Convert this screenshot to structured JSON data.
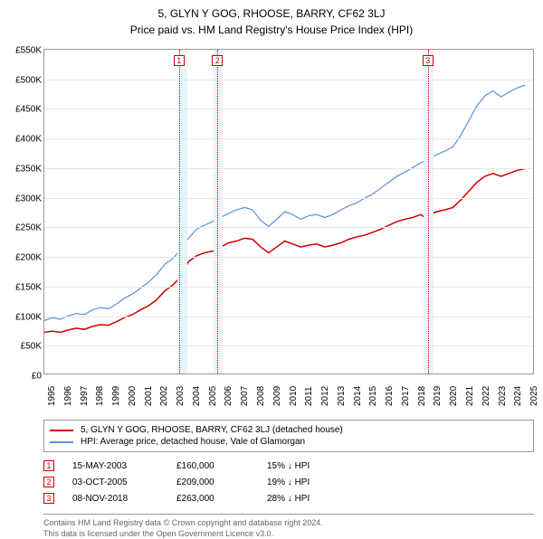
{
  "title": "5, GLYN Y GOG, RHOOSE, BARRY, CF62 3LJ",
  "subtitle": "Price paid vs. HM Land Registry's House Price Index (HPI)",
  "chart": {
    "type": "line",
    "background_color": "#ffffff",
    "grid_color": "#e8e8e8",
    "border_color": "#999999",
    "x_range": [
      1995,
      2025.5
    ],
    "y_range": [
      0,
      550
    ],
    "y_ticks": [
      0,
      50,
      100,
      150,
      200,
      250,
      300,
      350,
      400,
      450,
      500,
      550
    ],
    "y_tick_labels": [
      "£0",
      "£50K",
      "£100K",
      "£150K",
      "£200K",
      "£250K",
      "£300K",
      "£350K",
      "£400K",
      "£450K",
      "£500K",
      "£550K"
    ],
    "x_ticks": [
      1995,
      1996,
      1997,
      1998,
      1999,
      2000,
      2001,
      2002,
      2003,
      2004,
      2005,
      2006,
      2007,
      2008,
      2009,
      2010,
      2011,
      2012,
      2013,
      2014,
      2015,
      2016,
      2017,
      2018,
      2019,
      2020,
      2021,
      2022,
      2023,
      2024,
      2025
    ],
    "highlight_bands": [
      {
        "start": 2003.3,
        "end": 2003.9,
        "color": "#eef3f9"
      },
      {
        "start": 2005.5,
        "end": 2006.1,
        "color": "#eef3f9"
      },
      {
        "start": 2018.6,
        "end": 2019.2,
        "color": "#eef3f9"
      }
    ],
    "marker_lines": [
      {
        "x": 2003.37,
        "color": "#cc0000",
        "label": "1"
      },
      {
        "x": 2005.76,
        "color": "#cc0000",
        "label": "2"
      },
      {
        "x": 2018.85,
        "color": "#cc0000",
        "label": "3"
      }
    ],
    "series": [
      {
        "name": "property",
        "color": "#cc0000",
        "width": 1.5,
        "points": [
          [
            1995,
            70
          ],
          [
            1995.5,
            72
          ],
          [
            1996,
            70
          ],
          [
            1996.5,
            74
          ],
          [
            1997,
            77
          ],
          [
            1997.5,
            75
          ],
          [
            1998,
            80
          ],
          [
            1998.5,
            83
          ],
          [
            1999,
            82
          ],
          [
            1999.5,
            88
          ],
          [
            2000,
            95
          ],
          [
            2000.5,
            100
          ],
          [
            2001,
            108
          ],
          [
            2001.5,
            115
          ],
          [
            2002,
            125
          ],
          [
            2002.5,
            140
          ],
          [
            2003,
            150
          ],
          [
            2003.37,
            160
          ],
          [
            2003.7,
            175
          ],
          [
            2004,
            190
          ],
          [
            2004.5,
            200
          ],
          [
            2005,
            205
          ],
          [
            2005.5,
            208
          ],
          [
            2005.76,
            209
          ],
          [
            2006,
            215
          ],
          [
            2006.5,
            222
          ],
          [
            2007,
            225
          ],
          [
            2007.5,
            230
          ],
          [
            2008,
            228
          ],
          [
            2008.5,
            215
          ],
          [
            2009,
            205
          ],
          [
            2009.5,
            215
          ],
          [
            2010,
            225
          ],
          [
            2010.5,
            220
          ],
          [
            2011,
            215
          ],
          [
            2011.5,
            218
          ],
          [
            2012,
            220
          ],
          [
            2012.5,
            215
          ],
          [
            2013,
            218
          ],
          [
            2013.5,
            222
          ],
          [
            2014,
            228
          ],
          [
            2014.5,
            232
          ],
          [
            2015,
            235
          ],
          [
            2015.5,
            240
          ],
          [
            2016,
            245
          ],
          [
            2016.5,
            252
          ],
          [
            2017,
            258
          ],
          [
            2017.5,
            262
          ],
          [
            2018,
            265
          ],
          [
            2018.5,
            270
          ],
          [
            2018.85,
            263
          ],
          [
            2019,
            270
          ],
          [
            2019.5,
            275
          ],
          [
            2020,
            278
          ],
          [
            2020.5,
            282
          ],
          [
            2021,
            295
          ],
          [
            2021.5,
            310
          ],
          [
            2022,
            325
          ],
          [
            2022.5,
            335
          ],
          [
            2023,
            340
          ],
          [
            2023.5,
            335
          ],
          [
            2024,
            340
          ],
          [
            2024.5,
            345
          ],
          [
            2025,
            348
          ]
        ]
      },
      {
        "name": "hpi",
        "color": "#5b8fd6",
        "width": 1.2,
        "points": [
          [
            1995,
            90
          ],
          [
            1995.5,
            95
          ],
          [
            1996,
            92
          ],
          [
            1996.5,
            98
          ],
          [
            1997,
            102
          ],
          [
            1997.5,
            100
          ],
          [
            1998,
            108
          ],
          [
            1998.5,
            112
          ],
          [
            1999,
            110
          ],
          [
            1999.5,
            118
          ],
          [
            2000,
            128
          ],
          [
            2000.5,
            135
          ],
          [
            2001,
            145
          ],
          [
            2001.5,
            155
          ],
          [
            2002,
            168
          ],
          [
            2002.5,
            185
          ],
          [
            2003,
            195
          ],
          [
            2003.5,
            210
          ],
          [
            2004,
            230
          ],
          [
            2004.5,
            245
          ],
          [
            2005,
            252
          ],
          [
            2005.5,
            258
          ],
          [
            2006,
            265
          ],
          [
            2006.5,
            272
          ],
          [
            2007,
            278
          ],
          [
            2007.5,
            282
          ],
          [
            2008,
            278
          ],
          [
            2008.5,
            260
          ],
          [
            2009,
            250
          ],
          [
            2009.5,
            262
          ],
          [
            2010,
            275
          ],
          [
            2010.5,
            270
          ],
          [
            2011,
            262
          ],
          [
            2011.5,
            268
          ],
          [
            2012,
            270
          ],
          [
            2012.5,
            265
          ],
          [
            2013,
            270
          ],
          [
            2013.5,
            278
          ],
          [
            2014,
            285
          ],
          [
            2014.5,
            290
          ],
          [
            2015,
            298
          ],
          [
            2015.5,
            305
          ],
          [
            2016,
            315
          ],
          [
            2016.5,
            325
          ],
          [
            2017,
            335
          ],
          [
            2017.5,
            342
          ],
          [
            2018,
            350
          ],
          [
            2018.5,
            358
          ],
          [
            2019,
            365
          ],
          [
            2019.5,
            372
          ],
          [
            2020,
            378
          ],
          [
            2020.5,
            385
          ],
          [
            2021,
            405
          ],
          [
            2021.5,
            430
          ],
          [
            2022,
            455
          ],
          [
            2022.5,
            472
          ],
          [
            2023,
            480
          ],
          [
            2023.5,
            470
          ],
          [
            2024,
            478
          ],
          [
            2024.5,
            485
          ],
          [
            2025,
            490
          ]
        ]
      }
    ]
  },
  "legend": {
    "items": [
      {
        "color": "#cc0000",
        "label": "5, GLYN Y GOG, RHOOSE, BARRY, CF62 3LJ (detached house)"
      },
      {
        "color": "#5b8fd6",
        "label": "HPI: Average price, detached house, Vale of Glamorgan"
      }
    ]
  },
  "sales": [
    {
      "marker": "1",
      "date": "15-MAY-2003",
      "price": "£160,000",
      "diff": "15% ↓ HPI"
    },
    {
      "marker": "2",
      "date": "03-OCT-2005",
      "price": "£209,000",
      "diff": "19% ↓ HPI"
    },
    {
      "marker": "3",
      "date": "08-NOV-2018",
      "price": "£263,000",
      "diff": "28% ↓ HPI"
    }
  ],
  "footer": {
    "line1": "Contains HM Land Registry data © Crown copyright and database right 2024.",
    "line2": "This data is licensed under the Open Government Licence v3.0."
  },
  "label_fontsize": 10,
  "title_fontsize": 12
}
